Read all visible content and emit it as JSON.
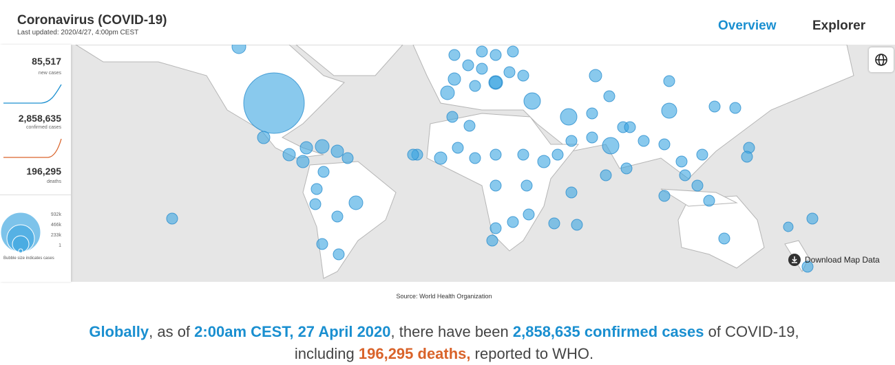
{
  "header": {
    "title": "Coronavirus (COVID-19)",
    "updated": "Last updated: 2020/4/27, 4:00pm CEST"
  },
  "nav": [
    "Overview",
    "Explorer"
  ],
  "stats": [
    {
      "value": "85,517",
      "label": "new cases"
    },
    {
      "value": "2,858,635",
      "label": "confirmed cases"
    },
    {
      "value": "196,295",
      "label": "deaths"
    }
  ],
  "legend": {
    "sizes": [
      "932k",
      "466k",
      "233k",
      "1"
    ],
    "caption": "Bubble size indicates cases"
  },
  "download": "Download Map Data",
  "source": "Source:  World Health Organization",
  "summary": [
    "Globally",
    ", as of ",
    "2:00am CEST, 27 April 2020",
    ", there have been ",
    "2,858,635 confirmed cases",
    " of COVID-19, including ",
    "196,295 deaths,",
    " reported to WHO."
  ]
}
